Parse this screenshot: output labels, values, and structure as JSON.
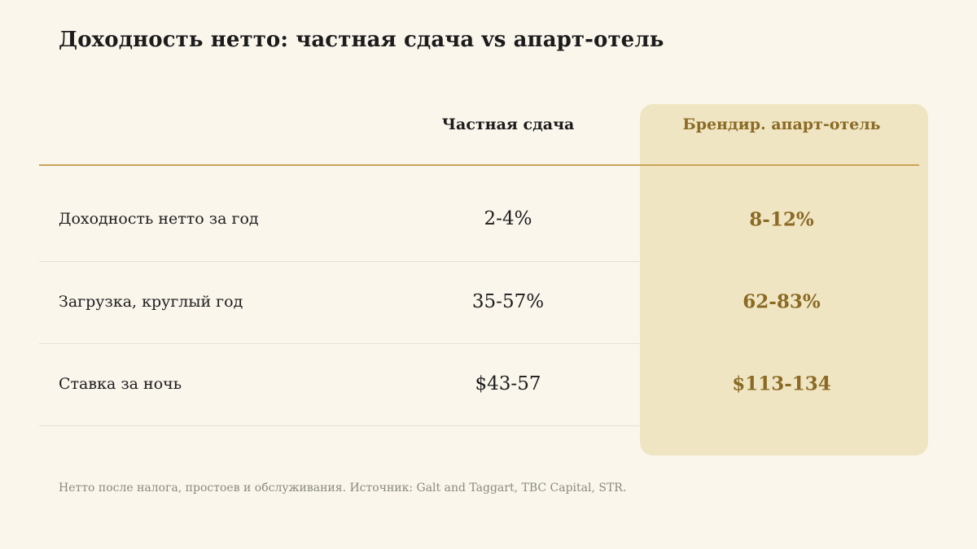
{
  "title": "Доходность нетто: частная сдача vs апарт-отель",
  "columns": {
    "private": "Частная сдача",
    "apart_hotel": "Брендир. апарт-отель"
  },
  "rows": [
    {
      "label": "Доходность нетто за год",
      "private": "2-4%",
      "apart_hotel": "8-12%"
    },
    {
      "label": "Загрузка, круглый год",
      "private": "35-57%",
      "apart_hotel": "62-83%"
    },
    {
      "label": "Ставка за ночь",
      "private": "$43-57",
      "apart_hotel": "$113-134"
    }
  ],
  "footnote": "Нетто после налога, простоев и обслуживания. Источник: Galt and Taggart, TBC Capital, STR.",
  "colors": {
    "background": "#faf6ec",
    "highlight_panel": "#f0e5c3",
    "accent": "#8a6a24",
    "rule": "#c9a458"
  }
}
